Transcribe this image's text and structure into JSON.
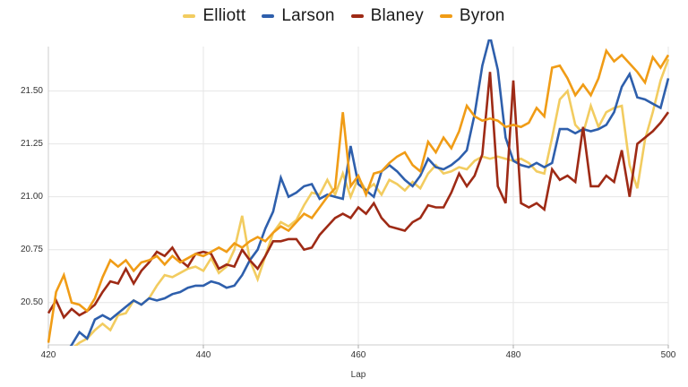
{
  "chart_data": {
    "type": "line",
    "xlabel": "Lap",
    "ylabel": "",
    "x_range": [
      420,
      500
    ],
    "y_range": [
      20.3,
      21.71
    ],
    "grid": true,
    "legend_position": "top-center",
    "background_color": "#ffffff",
    "grid_color": "#e6e6e6",
    "axis_line_color": "#cccccc",
    "tick_color": "#a8a8a8",
    "tick_label_color": "#333333",
    "legend_text_color": "#1a1a1a",
    "x_ticks": [
      {
        "value": 420,
        "label": "420"
      },
      {
        "value": 440,
        "label": "440"
      },
      {
        "value": 460,
        "label": "460"
      },
      {
        "value": 480,
        "label": "480"
      },
      {
        "value": 500,
        "label": "500"
      }
    ],
    "y_ticks": [
      {
        "value": 20.5,
        "label": "20.50"
      },
      {
        "value": 20.75,
        "label": "20.75"
      },
      {
        "value": 21.0,
        "label": "21.00"
      },
      {
        "value": 21.25,
        "label": "21.25"
      },
      {
        "value": 21.5,
        "label": "21.50"
      }
    ],
    "x": [
      420,
      421,
      422,
      423,
      424,
      425,
      426,
      427,
      428,
      429,
      430,
      431,
      432,
      433,
      434,
      435,
      436,
      437,
      438,
      439,
      440,
      441,
      442,
      443,
      444,
      445,
      446,
      447,
      448,
      449,
      450,
      451,
      452,
      453,
      454,
      455,
      456,
      457,
      458,
      459,
      460,
      461,
      462,
      463,
      464,
      465,
      466,
      467,
      468,
      469,
      470,
      471,
      472,
      473,
      474,
      475,
      476,
      477,
      478,
      479,
      480,
      481,
      482,
      483,
      484,
      485,
      486,
      487,
      488,
      489,
      490,
      491,
      492,
      493,
      494,
      495,
      496,
      497,
      498,
      499,
      500
    ],
    "series": [
      {
        "name": "Elliott",
        "color": "#F2CC60",
        "values": [
          20.24,
          20.27,
          20.21,
          20.28,
          20.31,
          20.33,
          20.37,
          20.4,
          20.37,
          20.44,
          20.45,
          20.51,
          20.49,
          20.52,
          20.58,
          20.63,
          20.62,
          20.64,
          20.66,
          20.67,
          20.65,
          20.71,
          20.64,
          20.67,
          20.75,
          20.91,
          20.7,
          20.61,
          20.72,
          20.83,
          20.88,
          20.86,
          20.89,
          20.96,
          21.02,
          21.01,
          21.08,
          21.01,
          21.11,
          21.0,
          21.09,
          21.03,
          21.06,
          21.01,
          21.08,
          21.06,
          21.03,
          21.07,
          21.04,
          21.11,
          21.15,
          21.11,
          21.12,
          21.14,
          21.13,
          21.17,
          21.19,
          21.18,
          21.19,
          21.18,
          21.17,
          21.18,
          21.16,
          21.12,
          21.11,
          21.28,
          21.46,
          21.5,
          21.34,
          21.3,
          21.43,
          21.33,
          21.4,
          21.42,
          21.43,
          21.15,
          21.04,
          21.27,
          21.4,
          21.55,
          21.65
        ]
      },
      {
        "name": "Larson",
        "color": "#2E5FAC",
        "values": [
          20.26,
          20.28,
          20.25,
          20.3,
          20.36,
          20.33,
          20.42,
          20.44,
          20.42,
          20.45,
          20.48,
          20.51,
          20.49,
          20.52,
          20.51,
          20.52,
          20.54,
          20.55,
          20.57,
          20.58,
          20.58,
          20.6,
          20.59,
          20.57,
          20.58,
          20.63,
          20.7,
          20.75,
          20.85,
          20.93,
          21.09,
          21.0,
          21.02,
          21.05,
          21.06,
          20.99,
          21.01,
          21.0,
          20.99,
          21.24,
          21.06,
          21.03,
          21.0,
          21.12,
          21.15,
          21.12,
          21.08,
          21.05,
          21.1,
          21.18,
          21.14,
          21.13,
          21.15,
          21.18,
          21.22,
          21.39,
          21.62,
          21.76,
          21.6,
          21.28,
          21.17,
          21.15,
          21.14,
          21.16,
          21.14,
          21.16,
          21.32,
          21.32,
          21.3,
          21.32,
          21.31,
          21.32,
          21.34,
          21.4,
          21.52,
          21.58,
          21.47,
          21.46,
          21.44,
          21.42,
          21.56
        ]
      },
      {
        "name": "Blaney",
        "color": "#9E2A15",
        "values": [
          20.45,
          20.51,
          20.43,
          20.47,
          20.44,
          20.46,
          20.49,
          20.55,
          20.6,
          20.59,
          20.66,
          20.59,
          20.65,
          20.69,
          20.74,
          20.72,
          20.76,
          20.7,
          20.67,
          20.73,
          20.74,
          20.73,
          20.66,
          20.68,
          20.67,
          20.75,
          20.7,
          20.66,
          20.72,
          20.79,
          20.79,
          20.8,
          20.8,
          20.75,
          20.76,
          20.82,
          20.86,
          20.9,
          20.92,
          20.9,
          20.95,
          20.92,
          20.97,
          20.9,
          20.86,
          20.85,
          20.84,
          20.88,
          20.9,
          20.96,
          20.95,
          20.95,
          21.02,
          21.11,
          21.05,
          21.1,
          21.2,
          21.59,
          21.05,
          20.97,
          21.55,
          20.97,
          20.95,
          20.97,
          20.94,
          21.13,
          21.08,
          21.1,
          21.07,
          21.33,
          21.05,
          21.05,
          21.1,
          21.07,
          21.22,
          21.0,
          21.25,
          21.28,
          21.31,
          21.35,
          21.4
        ]
      },
      {
        "name": "Byron",
        "color": "#F09C16",
        "values": [
          20.31,
          20.55,
          20.63,
          20.5,
          20.49,
          20.46,
          20.52,
          20.62,
          20.7,
          20.67,
          20.7,
          20.65,
          20.69,
          20.7,
          20.72,
          20.68,
          20.72,
          20.69,
          20.71,
          20.73,
          20.72,
          20.74,
          20.76,
          20.74,
          20.78,
          20.76,
          20.79,
          20.81,
          20.79,
          20.83,
          20.86,
          20.84,
          20.88,
          20.92,
          20.9,
          20.95,
          21.0,
          21.04,
          21.4,
          21.05,
          21.1,
          21.01,
          21.11,
          21.12,
          21.16,
          21.19,
          21.21,
          21.15,
          21.12,
          21.26,
          21.21,
          21.28,
          21.23,
          21.31,
          21.43,
          21.38,
          21.36,
          21.37,
          21.36,
          21.33,
          21.34,
          21.33,
          21.35,
          21.42,
          21.38,
          21.61,
          21.62,
          21.56,
          21.48,
          21.53,
          21.48,
          21.56,
          21.69,
          21.64,
          21.67,
          21.63,
          21.59,
          21.54,
          21.66,
          21.61,
          21.67
        ]
      }
    ]
  }
}
